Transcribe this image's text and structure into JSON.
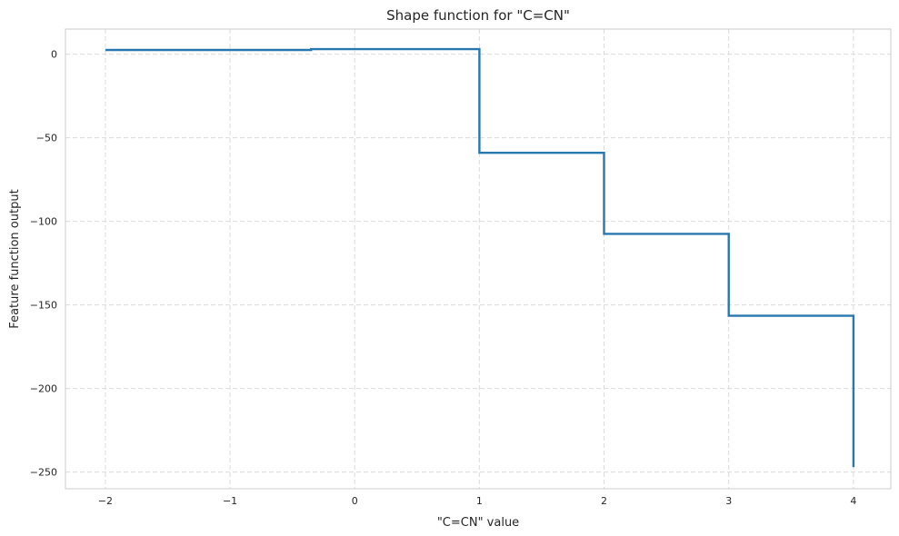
{
  "chart_data": {
    "type": "line",
    "step": true,
    "title": "Shape function for \"C=CN\"",
    "xlabel": "\"C=CN\" value",
    "ylabel": "Feature function output",
    "xlim": [
      -2.32,
      4.3
    ],
    "ylim": [
      -260,
      15
    ],
    "xticks": [
      -2,
      -1,
      0,
      1,
      2,
      3,
      4
    ],
    "xtick_labels": [
      "−2",
      "−1",
      "0",
      "1",
      "2",
      "3",
      "4"
    ],
    "yticks": [
      0,
      -50,
      -100,
      -150,
      -200,
      -250
    ],
    "ytick_labels": [
      "0",
      "−50",
      "−100",
      "−150",
      "−200",
      "−250"
    ],
    "grid": true,
    "series": [
      {
        "color": "#2878b0",
        "points": [
          [
            -2,
            2.5
          ],
          [
            -0.35,
            2.5
          ],
          [
            -0.35,
            3.0
          ],
          [
            1,
            3.0
          ],
          [
            1,
            -59
          ],
          [
            2,
            -59
          ],
          [
            2,
            -107.5
          ],
          [
            3,
            -107.5
          ],
          [
            3,
            -156.5
          ],
          [
            4,
            -156.5
          ],
          [
            4,
            -247
          ]
        ]
      }
    ]
  }
}
